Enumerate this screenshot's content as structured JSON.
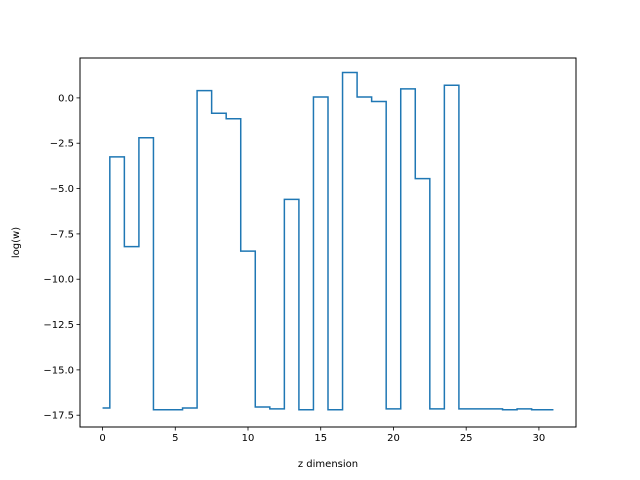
{
  "chart_data": {
    "type": "line",
    "step": "mid",
    "title": "",
    "xlabel": "z dimension",
    "ylabel": "log(w)",
    "xlim": [
      -1.55,
      32.55
    ],
    "ylim": [
      -18.15,
      2.2
    ],
    "xticks": [
      0,
      5,
      10,
      15,
      20,
      25,
      30
    ],
    "xtick_labels": [
      "0",
      "5",
      "10",
      "15",
      "20",
      "25",
      "30"
    ],
    "yticks": [
      0.0,
      -2.5,
      -5.0,
      -7.5,
      -10.0,
      -12.5,
      -15.0,
      -17.5
    ],
    "ytick_labels": [
      "0.0",
      "−2.5",
      "−5.0",
      "−7.5",
      "−10.0",
      "−12.5",
      "−15.0",
      "−17.5"
    ],
    "grid": false,
    "series": [
      {
        "color": "#1f77b4",
        "x": [
          0,
          1,
          2,
          3,
          4,
          5,
          6,
          7,
          8,
          9,
          10,
          11,
          12,
          13,
          14,
          15,
          16,
          17,
          18,
          19,
          20,
          21,
          22,
          23,
          24,
          25,
          26,
          27,
          28,
          29,
          30,
          31
        ],
        "values": [
          -17.1,
          -3.25,
          -8.2,
          -2.2,
          -17.2,
          -17.2,
          -17.1,
          0.4,
          -0.85,
          -1.15,
          -8.45,
          -17.05,
          -17.15,
          -5.6,
          -17.2,
          0.05,
          -17.2,
          1.4,
          0.05,
          -0.2,
          -17.15,
          0.5,
          -4.45,
          -17.15,
          0.7,
          -17.15,
          -17.15,
          -17.15,
          -17.2,
          -17.15,
          -17.2,
          -17.2
        ]
      }
    ]
  }
}
